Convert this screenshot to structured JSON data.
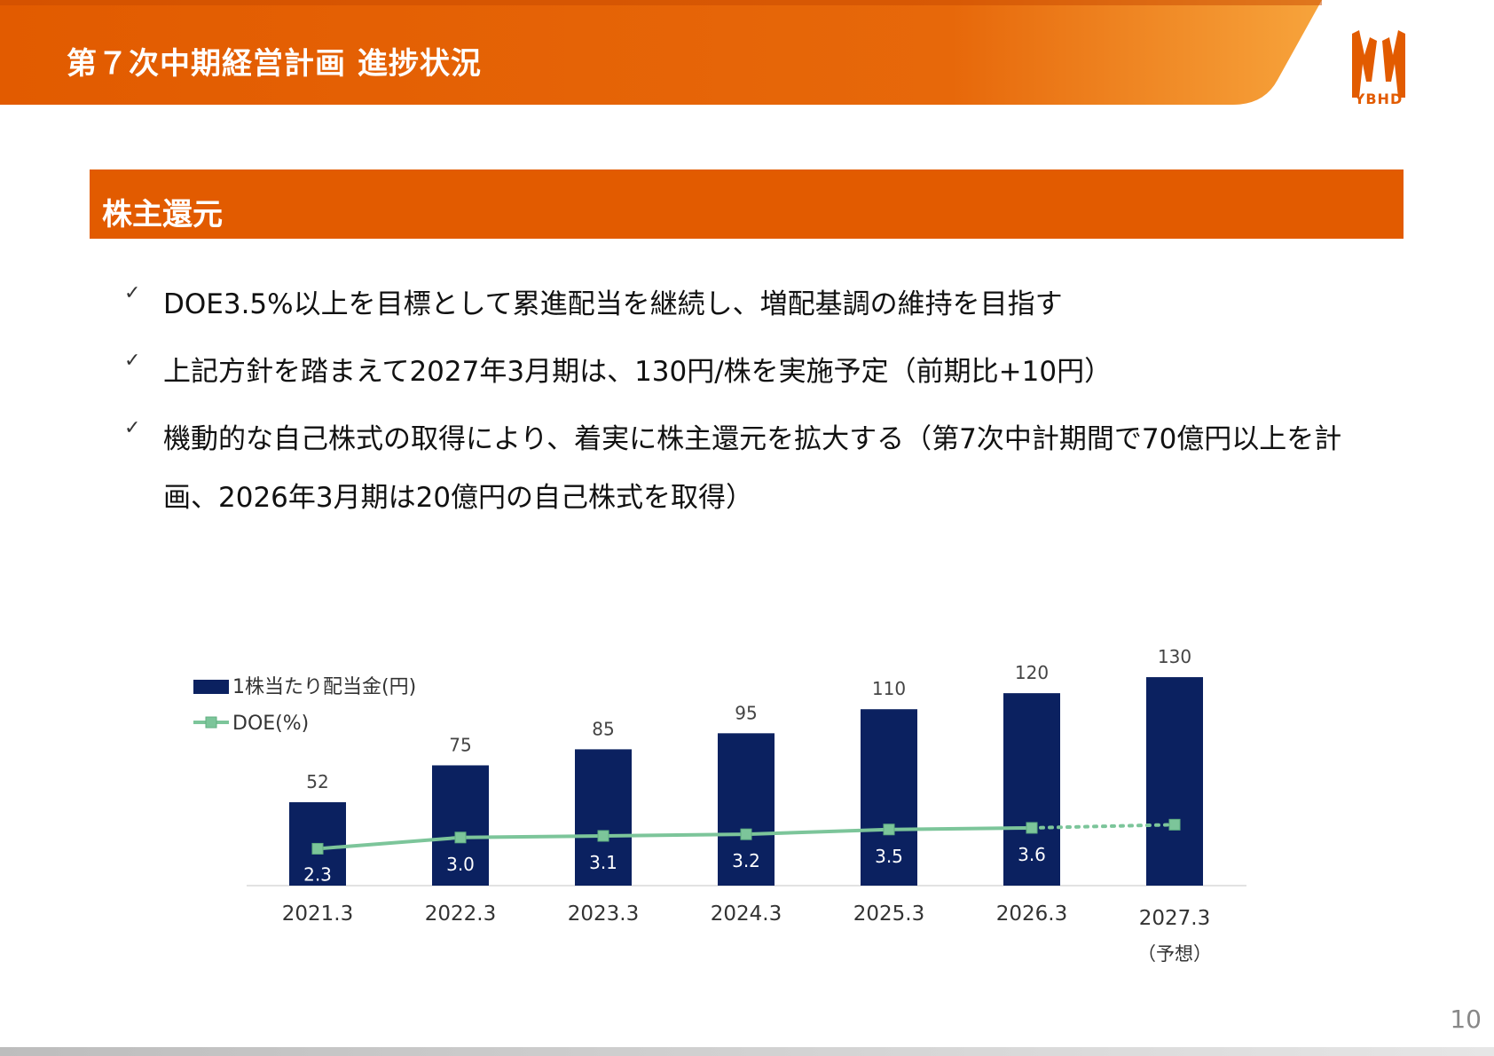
{
  "header": {
    "title": "第７次中期経営計画 進捗状況",
    "logo_text": "YBHD",
    "band_color": "#e25b00",
    "band_end_color": "#f7a43c"
  },
  "section": {
    "title": "株主還元",
    "bar_color": "#e25b00"
  },
  "bullets": [
    {
      "icon": "check-icon",
      "text": "DOE3.5%以上を目標として累進配当を継続し、増配基調の維持を目指す"
    },
    {
      "icon": "check-icon",
      "text": "上記方針を踏まえて2027年3月期は、130円/株を実施予定（前期比+10円）"
    },
    {
      "icon": "check-icon",
      "text": "機動的な自己株式の取得により、着実に株主還元を拡大する（第7次中計期間で70億円以上を計画、2026年3月期は20億円の自己株式を取得）"
    }
  ],
  "chart_data": {
    "type": "bar",
    "categories": [
      "2021.3",
      "2022.3",
      "2023.3",
      "2024.3",
      "2025.3",
      "2026.3",
      "2027.3"
    ],
    "category_notes": [
      "",
      "",
      "",
      "",
      "",
      "",
      "（予想）"
    ],
    "series": [
      {
        "name": "1株当たり配当金(円)",
        "type": "bar",
        "values": [
          52,
          75,
          85,
          95,
          110,
          120,
          130
        ],
        "labels": [
          "52",
          "75",
          "85",
          "95",
          "110",
          "120",
          "130"
        ],
        "color": "#0b2160"
      },
      {
        "name": "DOE(%)",
        "type": "line",
        "values": [
          2.3,
          3.0,
          3.1,
          3.2,
          3.5,
          3.6,
          3.8
        ],
        "labels": [
          "2.3",
          "3.0",
          "3.1",
          "3.2",
          "3.5",
          "3.6",
          ""
        ],
        "forecast_from_index": 5,
        "color": "#7cc59a"
      }
    ],
    "bar_ylim": [
      0,
      140
    ],
    "line_ylim": [
      0,
      14
    ],
    "legend_position": "top-left",
    "grid": false
  },
  "page_number": "10"
}
